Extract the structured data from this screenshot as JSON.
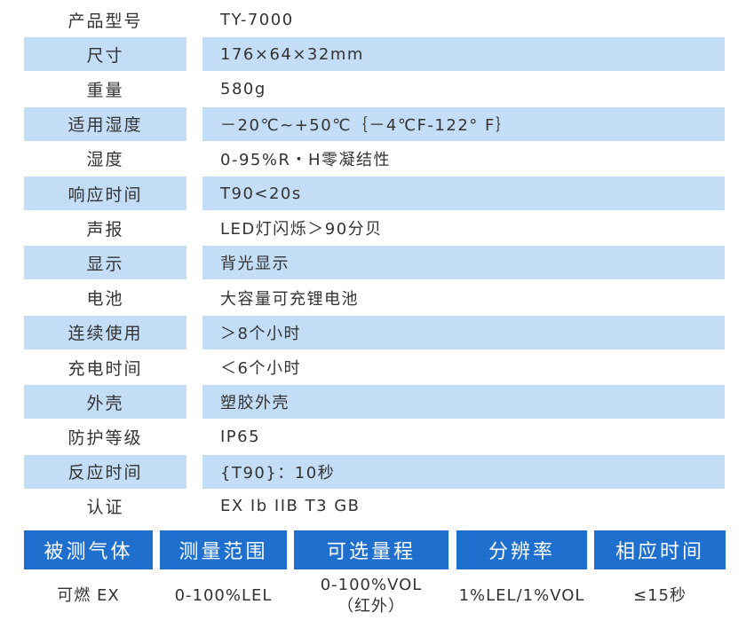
{
  "specs": [
    {
      "label": "产品型号",
      "value": "TY-7000"
    },
    {
      "label": "尺寸",
      "value": "176×64×32mm"
    },
    {
      "label": "重量",
      "value": "580g"
    },
    {
      "label": "适用湿度",
      "value": "－20℃~+50℃｛－4℃F-122° F｝"
    },
    {
      "label": "湿度",
      "value": "0-95%R・H零凝结性"
    },
    {
      "label": "响应时间",
      "value": "T90<20s"
    },
    {
      "label": "声报",
      "value": "LED灯闪烁＞90分贝"
    },
    {
      "label": "显示",
      "value": "背光显示"
    },
    {
      "label": "电池",
      "value": "大容量可充锂电池"
    },
    {
      "label": "连续使用",
      "value": "＞8个小时"
    },
    {
      "label": "充电时间",
      "value": "＜6个小时"
    },
    {
      "label": "外壳",
      "value": "塑胶外壳"
    },
    {
      "label": "防护等级",
      "value": "IP65"
    },
    {
      "label": "反应时间",
      "value": "{T90}：10秒"
    },
    {
      "label": "认证",
      "value": "EX Ib IIB T3 GB"
    }
  ],
  "gas_table": {
    "headers": [
      "被测气体",
      "测量范围",
      "可选量程",
      "分辨率",
      "相应时间"
    ],
    "row": [
      "可燃 EX",
      "0-100%LEL",
      "0-100%VOL",
      "1%LEL/1%VOL",
      "≤15秒"
    ],
    "row_note": "（红外）"
  },
  "colors": {
    "header_blue": "#1f6fce",
    "row_shade": "#c3ddf6"
  }
}
